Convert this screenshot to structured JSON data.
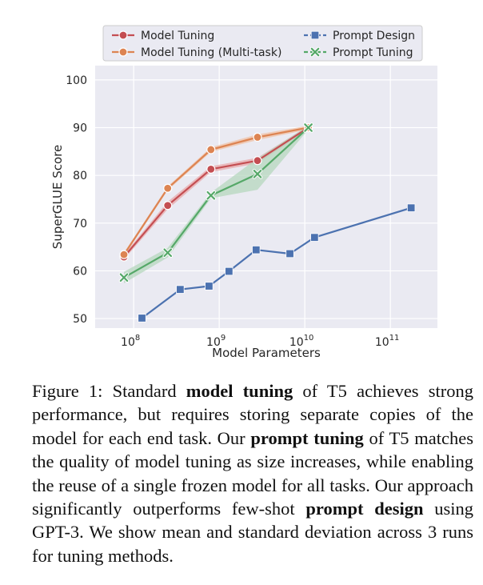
{
  "chart_data": {
    "type": "line",
    "xscale": "log",
    "xlabel": "Model Parameters",
    "ylabel": "SuperGLUE Score",
    "ylim": [
      48,
      103
    ],
    "yticks": [
      50,
      60,
      70,
      80,
      90,
      100
    ],
    "xticks": [
      {
        "value": 100000000.0,
        "base": "10",
        "exp": "8"
      },
      {
        "value": 1000000000.0,
        "base": "10",
        "exp": "9"
      },
      {
        "value": 10000000000.0,
        "base": "10",
        "exp": "10"
      },
      {
        "value": 100000000000.0,
        "base": "10",
        "exp": "11"
      }
    ],
    "legend_position": "top",
    "series": [
      {
        "name": "Model Tuning",
        "color": "#c44e52",
        "marker": "circle",
        "band": "#e8a8aa",
        "points": [
          [
            77000000.0,
            62.9
          ],
          [
            250000000.0,
            73.7
          ],
          [
            800000000.0,
            81.3
          ],
          [
            2800000000.0,
            83.1
          ],
          [
            11000000000.0,
            90.0
          ]
        ],
        "std": [
          0.5,
          0.8,
          0.6,
          0.6,
          0.4
        ]
      },
      {
        "name": "Model Tuning (Multi-task)",
        "color": "#dd8452",
        "marker": "circle",
        "band": "#f0c2a5",
        "points": [
          [
            77000000.0,
            63.4
          ],
          [
            250000000.0,
            77.3
          ],
          [
            800000000.0,
            85.4
          ],
          [
            2800000000.0,
            88.0
          ],
          [
            11000000000.0,
            90.0
          ]
        ],
        "std": [
          0.4,
          0.4,
          0.5,
          0.6,
          0.4
        ]
      },
      {
        "name": "Prompt Design",
        "color": "#4c72b0",
        "marker": "square",
        "points": [
          [
            125000000.0,
            50.1
          ],
          [
            350000000.0,
            56.1
          ],
          [
            760000000.0,
            56.8
          ],
          [
            1300000000.0,
            59.9
          ],
          [
            2700000000.0,
            64.4
          ],
          [
            6700000000.0,
            63.6
          ],
          [
            13000000000.0,
            67.0
          ],
          [
            175000000000.0,
            73.2
          ]
        ]
      },
      {
        "name": "Prompt Tuning",
        "color": "#55a868",
        "marker": "x",
        "band": "#b5d7bd",
        "points": [
          [
            77000000.0,
            58.6
          ],
          [
            250000000.0,
            63.8
          ],
          [
            800000000.0,
            75.8
          ],
          [
            2800000000.0,
            80.3
          ],
          [
            11000000000.0,
            90.0
          ]
        ],
        "std": [
          1.2,
          1.0,
          0.6,
          3.3,
          0.4
        ]
      }
    ]
  },
  "caption": {
    "parts": [
      {
        "text": "Figure 1: Standard ",
        "bold": false
      },
      {
        "text": "model tuning",
        "bold": true
      },
      {
        "text": " of T5 achieves strong performance, but requires storing separate copies of the model for each end task.  Our ",
        "bold": false
      },
      {
        "text": "prompt tuning",
        "bold": true
      },
      {
        "text": " of T5 matches the quality of model tuning as size increases, while enabling the reuse of a single frozen model for all tasks. Our approach significantly outperforms few-shot ",
        "bold": false
      },
      {
        "text": "prompt design",
        "bold": true
      },
      {
        "text": " using GPT-3. We show mean and standard deviation across 3 runs for tuning methods.",
        "bold": false
      }
    ]
  }
}
